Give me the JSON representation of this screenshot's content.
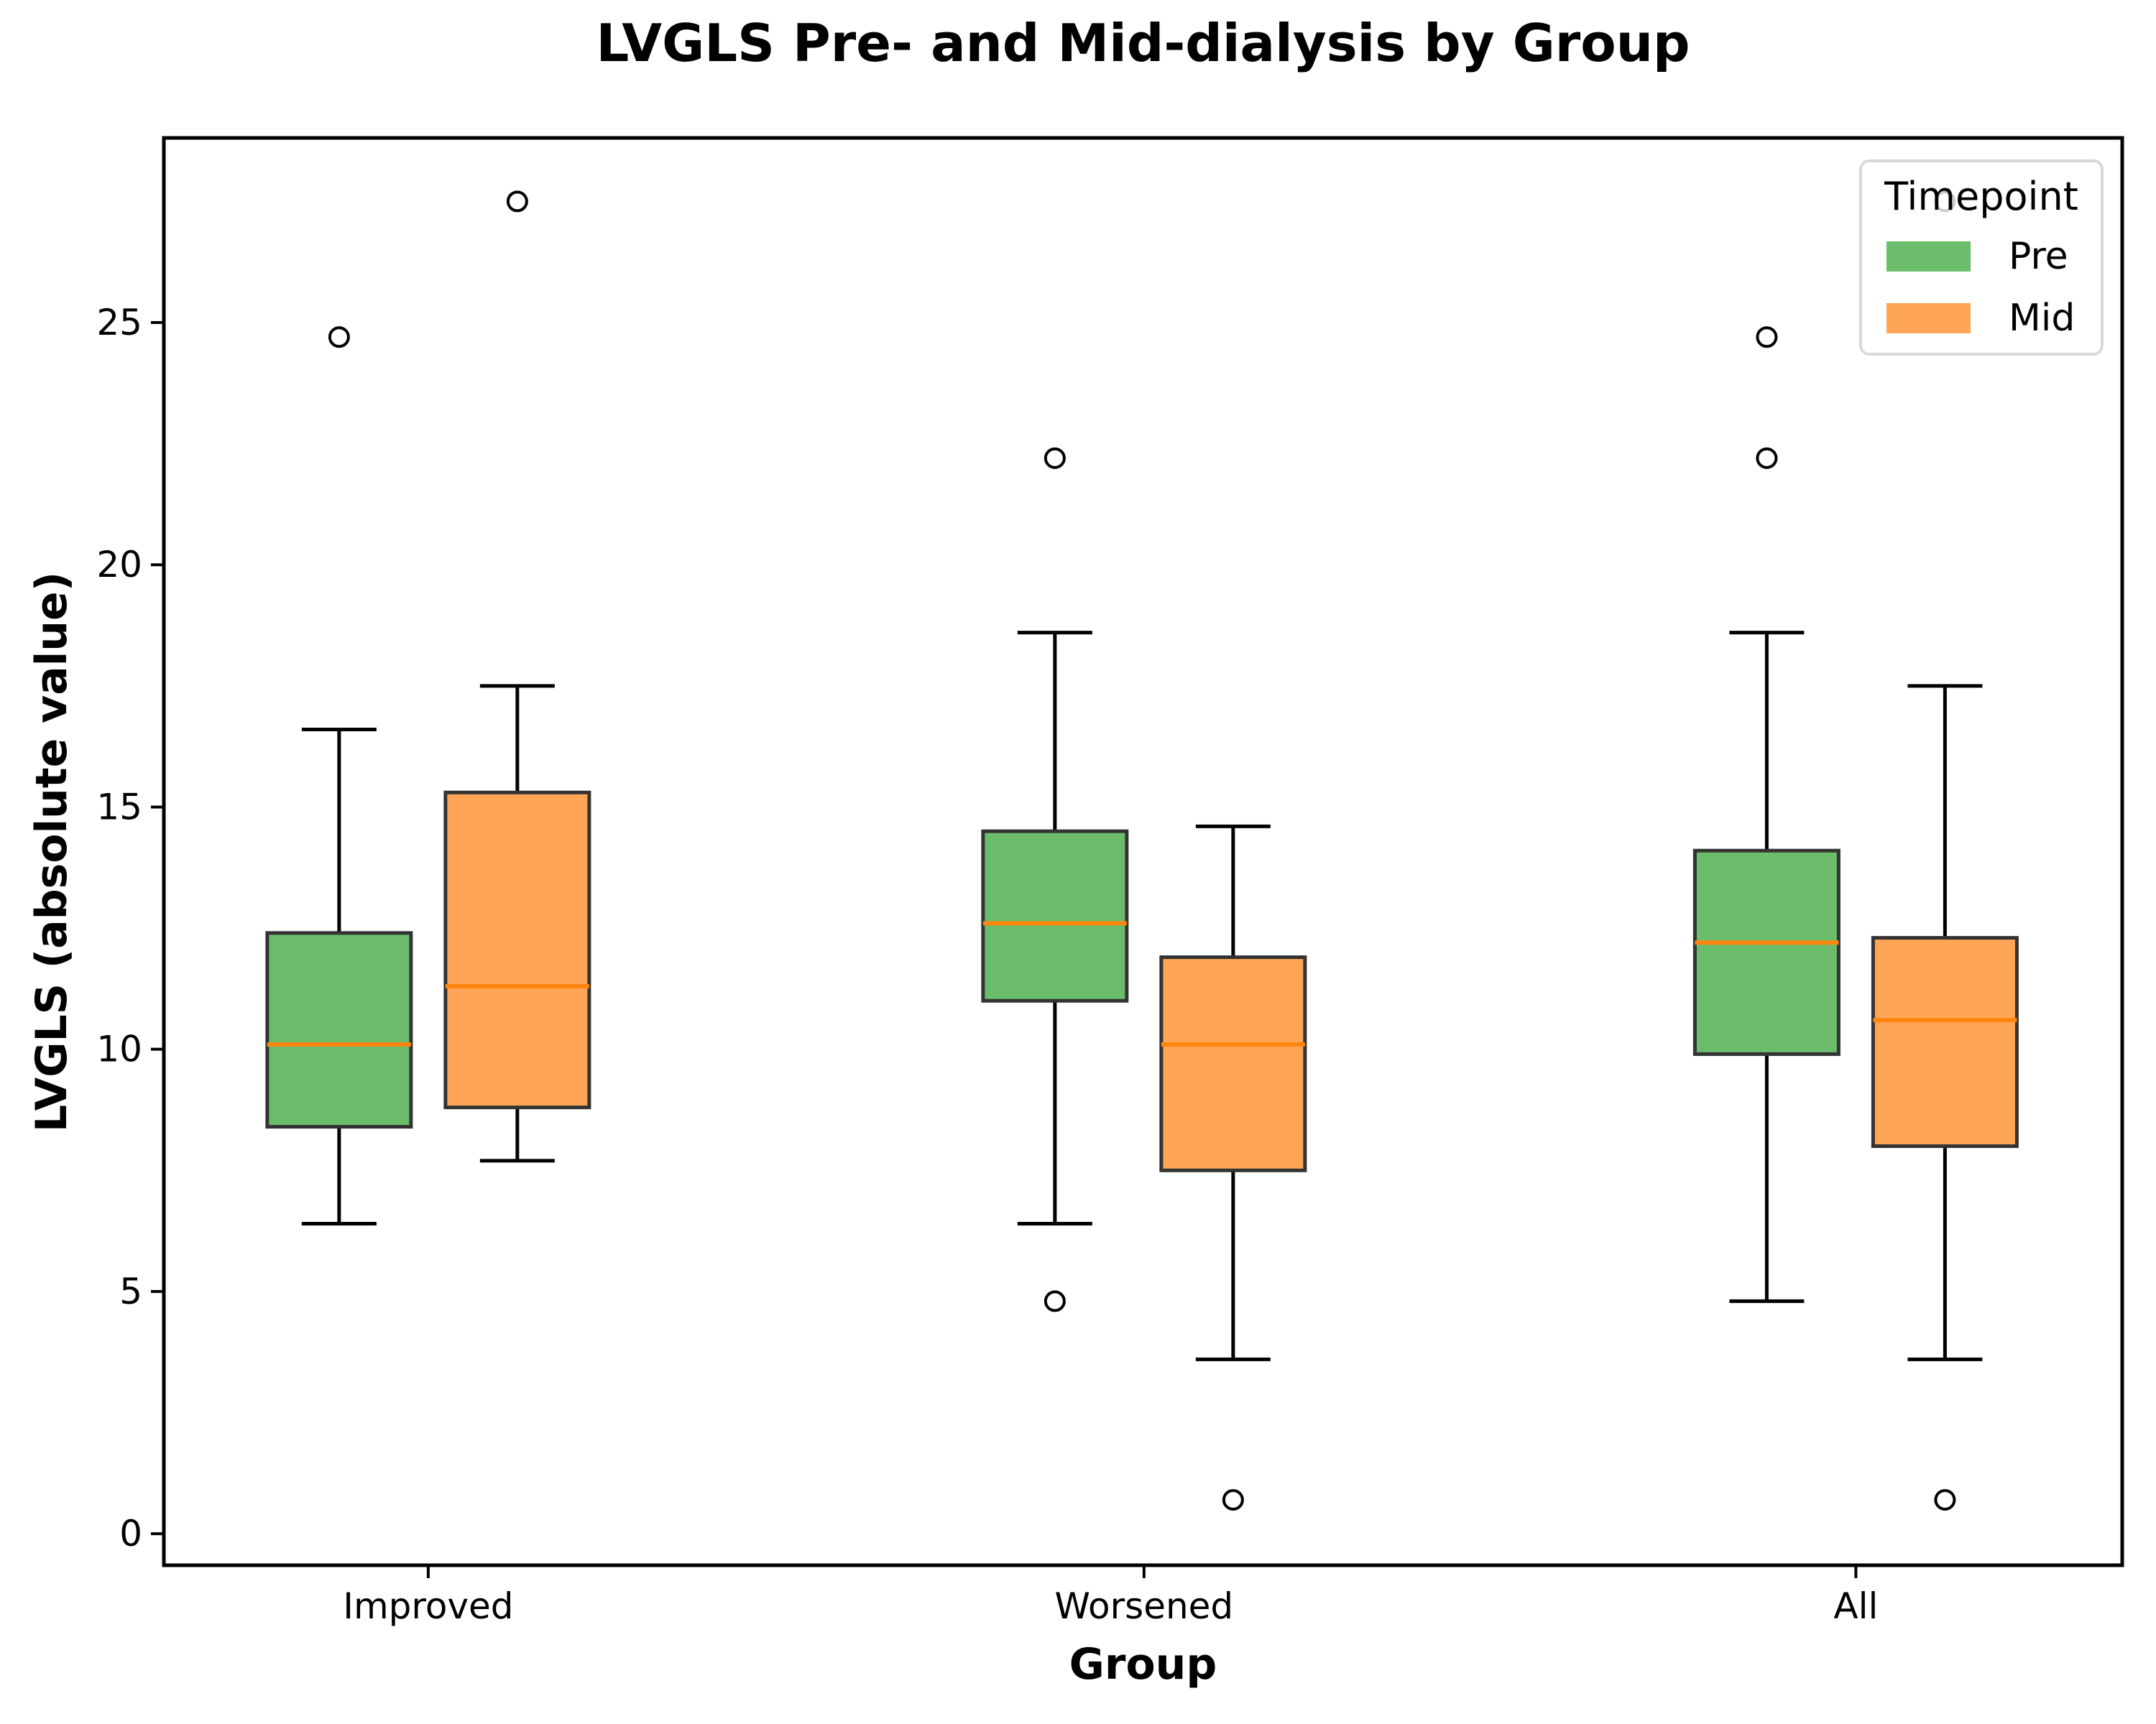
{
  "figure": {
    "title": "LVGLS Pre- and Mid-dialysis by Group",
    "xlabel": "Group",
    "ylabel": "LVGLS (absolute value)"
  },
  "legend": {
    "title": "Timepoint",
    "entries": [
      {
        "label": "Pre",
        "color": "#6bbc6b"
      },
      {
        "label": "Mid",
        "color": "#ffa556"
      }
    ]
  },
  "chart_data": {
    "type": "grouped_boxplot",
    "title": "LVGLS Pre- and Mid-dialysis by Group",
    "xlabel": "Group",
    "ylabel": "LVGLS (absolute value)",
    "categories": [
      "Improved",
      "Worsened",
      "All"
    ],
    "yticks": [
      0,
      5,
      10,
      15,
      20,
      25
    ],
    "ylim": [
      -0.65,
      28.81
    ],
    "grid": false,
    "legend_position": "upper right",
    "series": [
      {
        "name": "Pre",
        "fill": "#6bbc6b",
        "boxes": [
          {
            "category": "Improved",
            "whisker_low": 6.4,
            "q1": 8.4,
            "median": 10.1,
            "q3": 12.4,
            "whisker_high": 16.6,
            "outliers": [
              24.7
            ]
          },
          {
            "category": "Worsened",
            "whisker_low": 6.4,
            "q1": 11.0,
            "median": 12.6,
            "q3": 14.5,
            "whisker_high": 18.6,
            "outliers": [
              22.2,
              4.8
            ]
          },
          {
            "category": "All",
            "whisker_low": 4.8,
            "q1": 9.9,
            "median": 12.2,
            "q3": 14.1,
            "whisker_high": 18.6,
            "outliers": [
              24.7,
              22.2
            ]
          }
        ]
      },
      {
        "name": "Mid",
        "fill": "#ffa556",
        "boxes": [
          {
            "category": "Improved",
            "whisker_low": 7.7,
            "q1": 8.8,
            "median": 11.3,
            "q3": 15.3,
            "whisker_high": 17.5,
            "outliers": [
              27.5
            ]
          },
          {
            "category": "Worsened",
            "whisker_low": 3.6,
            "q1": 7.5,
            "median": 10.1,
            "q3": 11.9,
            "whisker_high": 14.6,
            "outliers": [
              0.7
            ]
          },
          {
            "category": "All",
            "whisker_low": 3.6,
            "q1": 8.0,
            "median": 10.6,
            "q3": 12.3,
            "whisker_high": 17.5,
            "outliers": [
              27.5,
              0.7
            ]
          }
        ]
      }
    ],
    "colors": {
      "median_line": "#ff850e",
      "box_edge": "#333333",
      "whisker": "#000000",
      "outlier_edge": "#000000",
      "spine": "#000000"
    }
  }
}
